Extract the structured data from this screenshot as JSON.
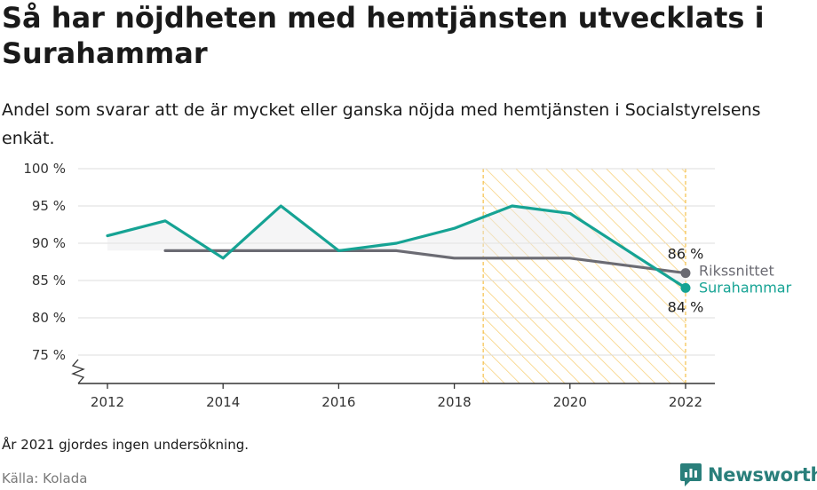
{
  "title": "Så har nöjdheten med hemtjänsten utvecklats i Surahammar",
  "subtitle": "Andel som svarar att de är mycket eller ganska nöjda med hemtjänsten i Socialstyrelsens enkät.",
  "note": "År 2021 gjordes ingen undersökning.",
  "source": "Källa: Kolada",
  "brand": {
    "name": "Newsworthy",
    "color": "#2a7f7b",
    "icon": "newsworthy-logo-icon"
  },
  "chart_data": {
    "type": "line",
    "x_ticks": [
      "2012",
      "2014",
      "2016",
      "2018",
      "2020",
      "2022"
    ],
    "y_ticks": [
      "75 %",
      "80 %",
      "85 %",
      "90 %",
      "95 %",
      "100 %"
    ],
    "xlim": [
      2011.5,
      2022.5
    ],
    "ylim": [
      71,
      100
    ],
    "y_axis_break": true,
    "grid": "horizontal",
    "highlight_range": {
      "from": 2018.5,
      "to": 2022,
      "color": "#f5c04a"
    },
    "series": [
      {
        "name": "Surahammar",
        "color": "#16a394",
        "x": [
          2012,
          2013,
          2014,
          2015,
          2016,
          2017,
          2018,
          2019,
          2020,
          2022
        ],
        "values": [
          91,
          93,
          88,
          95,
          89,
          90,
          92,
          95,
          94,
          84
        ],
        "end_label": "84 %"
      },
      {
        "name": "Rikssnittet",
        "color": "#6b6b73",
        "x": [
          2013,
          2014,
          2015,
          2016,
          2017,
          2018,
          2019,
          2020,
          2022
        ],
        "values": [
          89,
          89,
          89,
          89,
          89,
          88,
          88,
          88,
          86
        ],
        "end_label": "86 %"
      }
    ]
  }
}
